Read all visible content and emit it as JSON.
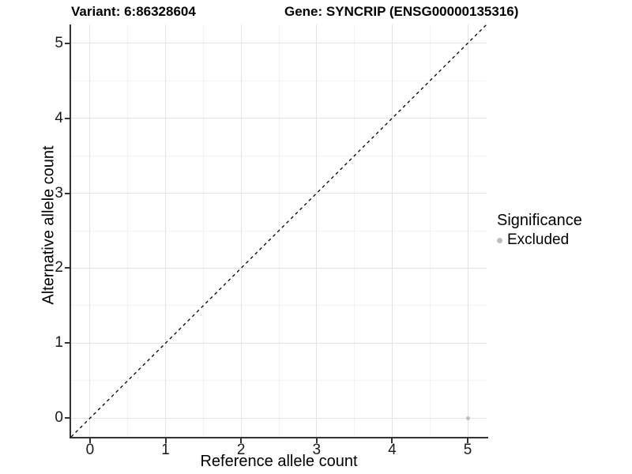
{
  "chart_data": {
    "type": "scatter",
    "title_left": "Variant: 6:86328604",
    "title_right": "Gene: SYNCRIP (ENSG00000135316)",
    "xlabel": "Reference allele count",
    "ylabel": "Alternative allele count",
    "xlim": [
      -0.25,
      5.25
    ],
    "ylim": [
      -0.25,
      5.25
    ],
    "xticks": [
      0,
      1,
      2,
      3,
      4,
      5
    ],
    "yticks": [
      0,
      1,
      2,
      3,
      4,
      5
    ],
    "xticks_minor": [
      0.5,
      1.5,
      2.5,
      3.5,
      4.5
    ],
    "yticks_minor": [
      0.5,
      1.5,
      2.5,
      3.5,
      4.5
    ],
    "grid": true,
    "reference_line": {
      "slope": 1,
      "intercept": 0,
      "style": "dashed",
      "color": "#000000"
    },
    "series": [
      {
        "name": "Excluded",
        "color": "#bdbdbd",
        "points": [
          {
            "x": 5,
            "y": 0
          }
        ]
      }
    ],
    "legend": {
      "title": "Significance",
      "position": "right",
      "entries": [
        {
          "label": "Excluded",
          "color": "#bdbdbd"
        }
      ]
    },
    "colors": {
      "grid_major": "#e3e3e3",
      "grid_minor": "#f2f2f2",
      "axis_line": "#333333",
      "point": "#bdbdbd",
      "text": "#000000"
    }
  }
}
